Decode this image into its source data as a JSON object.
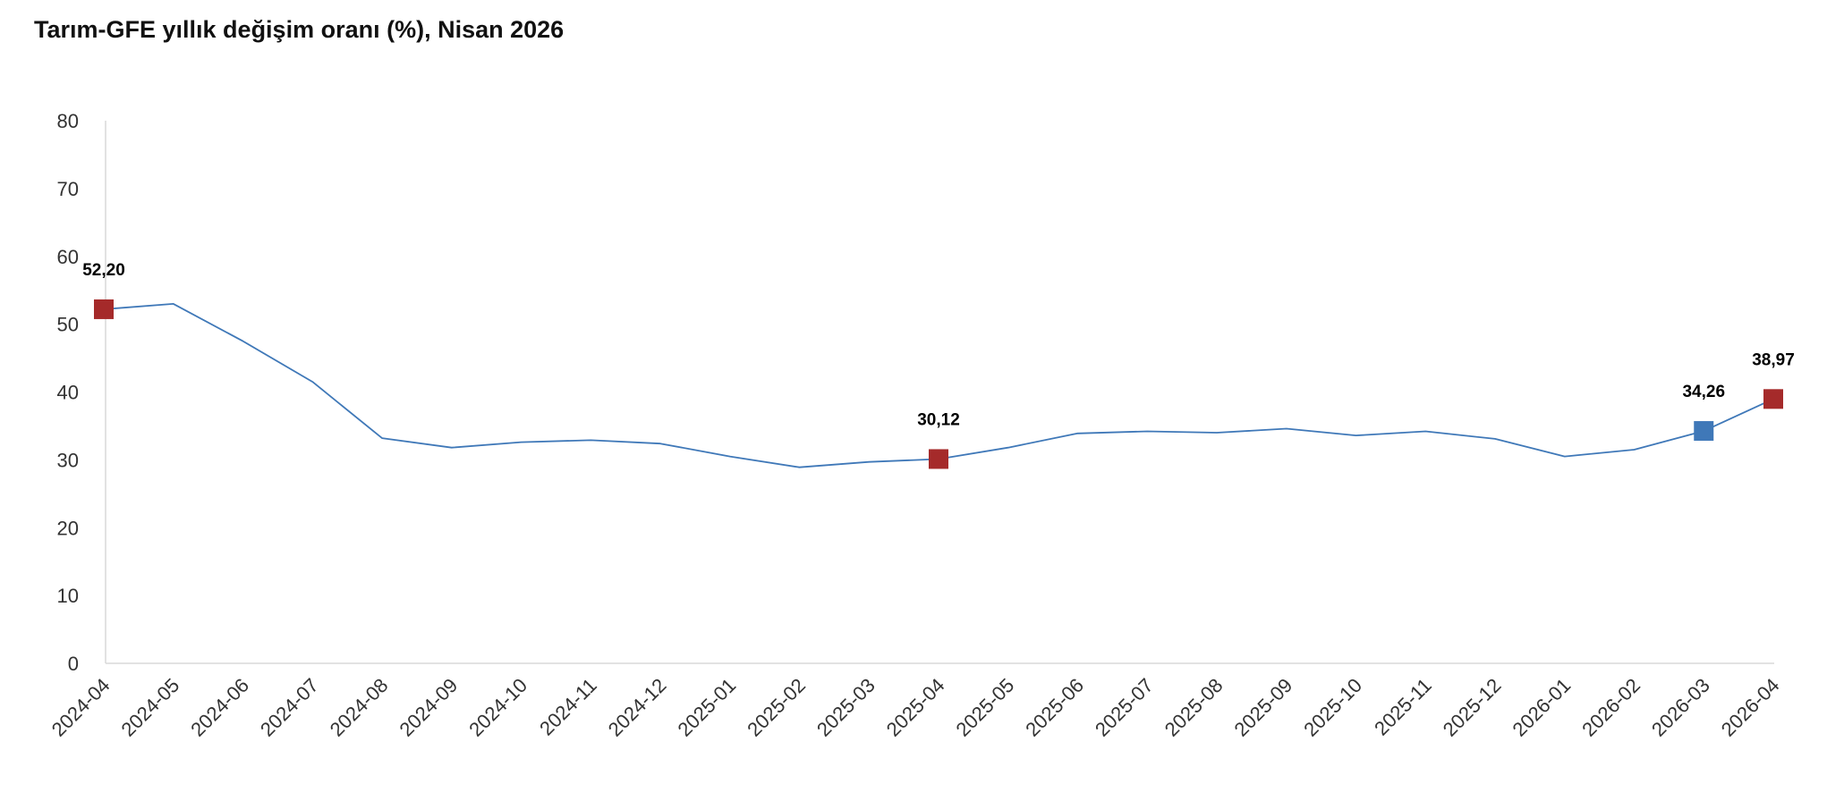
{
  "chart_data": {
    "type": "line",
    "title": "Tarım-GFE yıllık değişim oranı (%), Nisan 2026",
    "xlabel": "",
    "ylabel": "",
    "ylim": [
      0,
      80
    ],
    "yticks": [
      "0",
      "10",
      "20",
      "30",
      "40",
      "50",
      "60",
      "70",
      "80"
    ],
    "grid": false,
    "legend": "none",
    "line_color": "#3f78b8",
    "categories": [
      "2024-04",
      "2024-05",
      "2024-06",
      "2024-07",
      "2024-08",
      "2024-09",
      "2024-10",
      "2024-11",
      "2024-12",
      "2025-01",
      "2025-02",
      "2025-03",
      "2025-04",
      "2025-05",
      "2025-06",
      "2025-07",
      "2025-08",
      "2025-09",
      "2025-10",
      "2025-11",
      "2025-12",
      "2026-01",
      "2026-02",
      "2026-03",
      "2026-04"
    ],
    "series": [
      {
        "values": [
          52.2,
          53.0,
          47.5,
          41.5,
          33.2,
          31.8,
          32.6,
          32.9,
          32.4,
          30.5,
          28.9,
          29.7,
          30.12,
          31.8,
          33.9,
          34.2,
          34.0,
          34.6,
          33.6,
          34.2,
          33.1,
          30.5,
          31.5,
          34.26,
          38.97
        ]
      }
    ],
    "highlighted_points": [
      {
        "category": "2024-04",
        "value": 52.2,
        "label": "52,20",
        "color": "#a52a2a"
      },
      {
        "category": "2025-04",
        "value": 30.12,
        "label": "30,12",
        "color": "#a52a2a"
      },
      {
        "category": "2026-03",
        "value": 34.26,
        "label": "34,26",
        "color": "#3f78b8"
      },
      {
        "category": "2026-04",
        "value": 38.97,
        "label": "38,97",
        "color": "#a52a2a"
      }
    ]
  }
}
